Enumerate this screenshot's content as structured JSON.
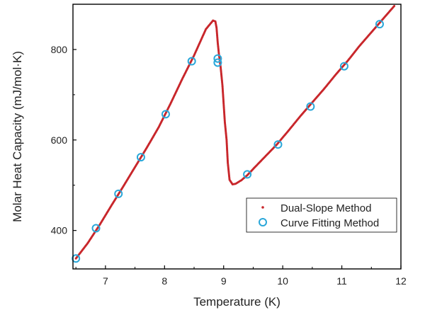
{
  "chart_data": {
    "type": "scatter",
    "xlabel": "Temperature (K)",
    "ylabel": "Molar Heat Capacity (mJ/mol·K)",
    "xlim": [
      6.45,
      12.0
    ],
    "ylim": [
      315,
      900
    ],
    "xticks": [
      "7",
      "8",
      "9",
      "10",
      "11",
      "12"
    ],
    "yticks": [
      "400",
      "600",
      "800"
    ],
    "legend_position": "bottom-right",
    "grid": false,
    "series": [
      {
        "name": "Dual-Slope Method",
        "marker": "dot",
        "color": "#c8262b",
        "points": [
          [
            6.5,
            338
          ],
          [
            6.7,
            372
          ],
          [
            6.9,
            412
          ],
          [
            7.1,
            455
          ],
          [
            7.3,
            497
          ],
          [
            7.5,
            540
          ],
          [
            7.7,
            583
          ],
          [
            7.9,
            628
          ],
          [
            8.1,
            680
          ],
          [
            8.3,
            735
          ],
          [
            8.5,
            787
          ],
          [
            8.7,
            845
          ],
          [
            8.82,
            864
          ],
          [
            8.86,
            862
          ],
          [
            8.88,
            848
          ],
          [
            8.9,
            815
          ],
          [
            8.92,
            790
          ],
          [
            8.95,
            760
          ],
          [
            8.98,
            720
          ],
          [
            9.0,
            680
          ],
          [
            9.02,
            640
          ],
          [
            9.05,
            600
          ],
          [
            9.07,
            550
          ],
          [
            9.1,
            512
          ],
          [
            9.15,
            502
          ],
          [
            9.2,
            503
          ],
          [
            9.3,
            511
          ],
          [
            9.4,
            522
          ],
          [
            9.5,
            536
          ],
          [
            9.7,
            563
          ],
          [
            9.9,
            590
          ],
          [
            10.1,
            621
          ],
          [
            10.3,
            653
          ],
          [
            10.5,
            683
          ],
          [
            10.7,
            713
          ],
          [
            10.9,
            745
          ],
          [
            11.1,
            775
          ],
          [
            11.3,
            808
          ],
          [
            11.5,
            838
          ],
          [
            11.7,
            868
          ],
          [
            11.9,
            898
          ]
        ]
      },
      {
        "name": "Curve Fitting Method",
        "marker": "circle",
        "color": "#2aa7d9",
        "points": [
          [
            6.5,
            338
          ],
          [
            6.84,
            405
          ],
          [
            7.22,
            481
          ],
          [
            7.6,
            562
          ],
          [
            8.02,
            657
          ],
          [
            8.46,
            774
          ],
          [
            8.9,
            780
          ],
          [
            8.9,
            771
          ],
          [
            9.4,
            524
          ],
          [
            9.92,
            590
          ],
          [
            10.47,
            674
          ],
          [
            11.04,
            763
          ],
          [
            11.64,
            856
          ]
        ]
      }
    ]
  }
}
